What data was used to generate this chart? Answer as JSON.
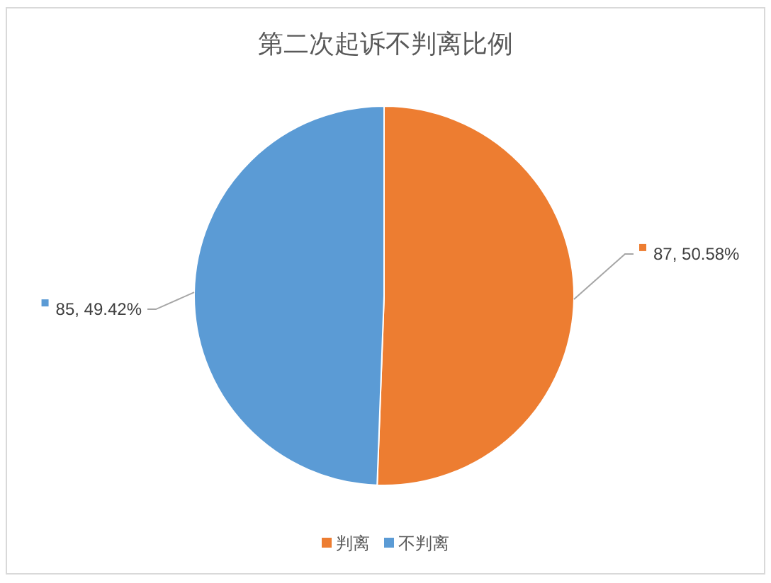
{
  "chart_data": {
    "type": "pie",
    "title": "第二次起诉不判离比例",
    "categories": [
      "判离",
      "不判离"
    ],
    "values": [
      87,
      85
    ],
    "colors": [
      "#ed7d31",
      "#5b9bd5"
    ],
    "value_labels": [
      "87, 50.58%",
      "85, 49.42%"
    ],
    "legend": "bottom"
  }
}
